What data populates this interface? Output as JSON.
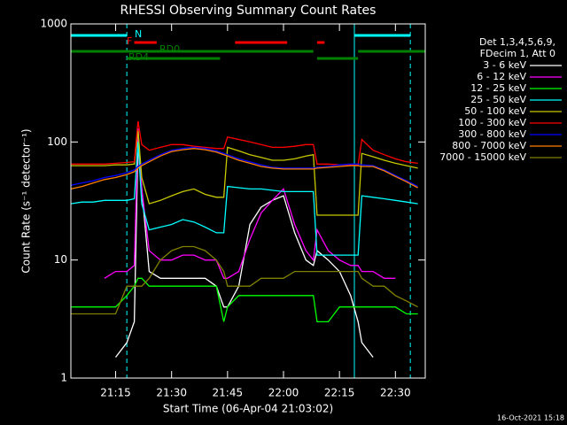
{
  "chart_data": {
    "type": "line",
    "title": "RHESSI Observing Summary Count Rates",
    "xlabel": "Start Time (06-Apr-04 21:03:02)",
    "ylabel": "Count Rate (s⁻¹ detector⁻¹)",
    "footer": "16-Oct-2021 15:18",
    "legend_header": [
      "Det 1,3,4,5,6,9,",
      "FDecim 1, Att 0"
    ],
    "log_scale": true,
    "ylim": [
      1,
      1000
    ],
    "yticks": [
      1,
      10,
      100,
      1000
    ],
    "xlim": [
      "21:03",
      "22:38"
    ],
    "xticks": [
      "21:15",
      "21:30",
      "21:45",
      "22:00",
      "22:15",
      "22:30"
    ],
    "vline_color": "#00ffff",
    "vlines_solid": [
      "22:19"
    ],
    "vlines_dashed": [
      "21:18",
      "22:34"
    ],
    "flags": [
      {
        "label": "N",
        "color": "#00ffff",
        "segments": [
          [
            "21:03",
            "21:18"
          ],
          [
            "22:19",
            "22:34"
          ]
        ]
      },
      {
        "label": "F",
        "color": "#ff0000",
        "segments": [
          [
            "21:20",
            "21:26"
          ],
          [
            "21:47",
            "22:01"
          ],
          [
            "22:09",
            "22:11"
          ]
        ]
      },
      {
        "label": "RD0",
        "color": "#008000",
        "segments": [
          [
            "21:03",
            "22:08"
          ],
          [
            "22:20",
            "22:38"
          ]
        ]
      },
      {
        "label": "RD4",
        "color": "#008000",
        "segments": [
          [
            "21:18",
            "21:43"
          ],
          [
            "22:09",
            "22:20"
          ]
        ]
      }
    ],
    "x": [
      "21:03",
      "21:06",
      "21:09",
      "21:12",
      "21:15",
      "21:18",
      "21:20",
      "21:21",
      "21:22",
      "21:24",
      "21:27",
      "21:30",
      "21:33",
      "21:36",
      "21:39",
      "21:42",
      "21:44",
      "21:45",
      "21:48",
      "21:51",
      "21:54",
      "21:57",
      "22:00",
      "22:03",
      "22:06",
      "22:08",
      "22:09",
      "22:12",
      "22:15",
      "22:18",
      "22:20",
      "22:21",
      "22:24",
      "22:27",
      "22:30",
      "22:33",
      "22:36"
    ],
    "series": [
      {
        "name": "3 - 6 keV",
        "color": "#ffffff",
        "values": [
          null,
          null,
          null,
          null,
          1.5,
          2,
          3,
          100,
          40,
          8,
          7,
          7,
          7,
          7,
          7,
          6,
          4,
          4,
          6,
          20,
          28,
          32,
          35,
          17,
          10,
          9,
          12,
          10,
          8,
          5,
          3,
          2,
          1.5,
          null,
          null,
          null,
          null
        ]
      },
      {
        "name": "6 - 12 keV",
        "color": "#ff00ff",
        "values": [
          null,
          null,
          null,
          7,
          8,
          8,
          9,
          130,
          40,
          12,
          10,
          10,
          11,
          11,
          10,
          10,
          7,
          7,
          8,
          15,
          25,
          32,
          40,
          20,
          12,
          10,
          18,
          12,
          10,
          9,
          9,
          8,
          8,
          7,
          7,
          null,
          null
        ]
      },
      {
        "name": "12 - 25 keV",
        "color": "#00ff00",
        "values": [
          4,
          4,
          4,
          4,
          4,
          5,
          6,
          7,
          7,
          6,
          6,
          6,
          6,
          6,
          6,
          6,
          3,
          4,
          5,
          5,
          5,
          5,
          5,
          5,
          5,
          5,
          3,
          3,
          4,
          4,
          4,
          4,
          4,
          4,
          4,
          3.5,
          3.5
        ]
      },
      {
        "name": "25 - 50 keV",
        "color": "#00ffff",
        "values": [
          30,
          31,
          31,
          32,
          32,
          32,
          33,
          100,
          30,
          18,
          19,
          20,
          22,
          21,
          19,
          17,
          17,
          42,
          41,
          40,
          40,
          39,
          38,
          38,
          38,
          38,
          11,
          11,
          11,
          11,
          11,
          35,
          34,
          33,
          32,
          31,
          30
        ]
      },
      {
        "name": "50 - 100 keV",
        "color": "#c8c800",
        "values": [
          63,
          63,
          63,
          63,
          64,
          64,
          65,
          125,
          50,
          30,
          32,
          35,
          38,
          40,
          36,
          34,
          34,
          90,
          84,
          78,
          74,
          70,
          70,
          72,
          76,
          78,
          24,
          24,
          24,
          24,
          24,
          80,
          75,
          70,
          66,
          63,
          60
        ]
      },
      {
        "name": "100 - 300 keV",
        "color": "#ff0000",
        "values": [
          65,
          65,
          65,
          65,
          66,
          67,
          68,
          150,
          95,
          85,
          90,
          95,
          95,
          92,
          90,
          88,
          88,
          110,
          105,
          100,
          95,
          90,
          90,
          92,
          95,
          95,
          65,
          65,
          64,
          64,
          64,
          105,
          85,
          78,
          72,
          68,
          66
        ]
      },
      {
        "name": "300 - 800 keV",
        "color": "#0000ff",
        "values": [
          43,
          45,
          47,
          50,
          52,
          55,
          58,
          62,
          65,
          70,
          78,
          85,
          88,
          90,
          88,
          84,
          80,
          78,
          72,
          68,
          64,
          61,
          60,
          60,
          60,
          60,
          61,
          62,
          64,
          65,
          65,
          64,
          63,
          58,
          52,
          47,
          42
        ]
      },
      {
        "name": "800 - 7000 keV",
        "color": "#ff8000",
        "values": [
          40,
          42,
          45,
          48,
          50,
          53,
          56,
          60,
          63,
          68,
          76,
          83,
          86,
          88,
          86,
          82,
          78,
          76,
          70,
          66,
          62,
          60,
          59,
          59,
          59,
          59,
          60,
          61,
          62,
          63,
          63,
          62,
          62,
          57,
          51,
          46,
          41
        ]
      },
      {
        "name": "7000 - 15000 keV",
        "color": "#808000",
        "values": [
          3.5,
          3.5,
          3.5,
          3.5,
          3.5,
          6,
          6,
          6,
          6,
          7,
          10,
          12,
          13,
          13,
          12,
          10,
          8,
          6,
          6,
          6,
          7,
          7,
          7,
          8,
          8,
          8,
          8,
          8,
          8,
          8,
          8,
          7,
          6,
          6,
          5,
          4.5,
          4
        ]
      }
    ]
  }
}
